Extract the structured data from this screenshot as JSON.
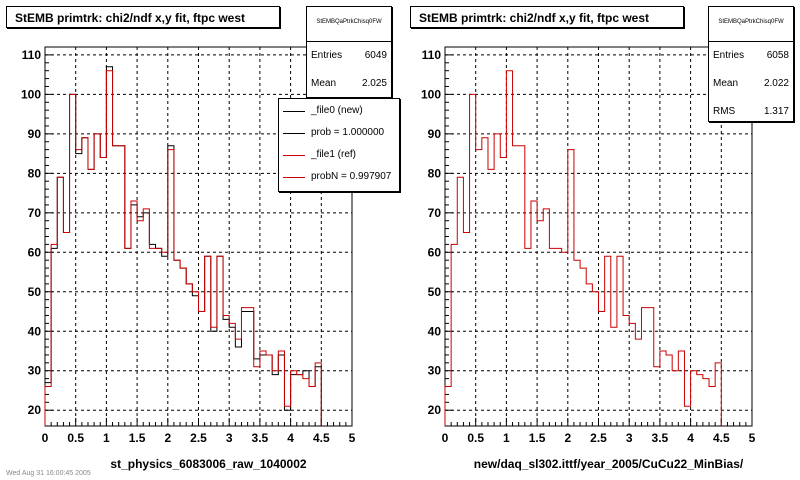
{
  "colors": {
    "ref": "#cc0000",
    "new": "#000000",
    "grid": "#000000"
  },
  "footer_note": "Wed Aug 31 16:00:45 2005",
  "chart_data": [
    {
      "type": "histogram",
      "title": "StEMB primtrk: chi2/ndf x,y fit, ftpc west",
      "xlabel": "st_physics_6083006_raw_1040002",
      "ylabel": "",
      "xlim": [
        0,
        5
      ],
      "ylim": [
        16,
        112
      ],
      "xticks": [
        "0",
        "0.5",
        "1",
        "1.5",
        "2",
        "2.5",
        "3",
        "3.5",
        "4",
        "4.5",
        "5"
      ],
      "yticks": [
        "20",
        "30",
        "40",
        "50",
        "60",
        "70",
        "80",
        "90",
        "100",
        "110"
      ],
      "grid": true,
      "bin_edges_start": 0,
      "bin_width": 0.1,
      "stats": {
        "name": "StEMBQaPtrkChisq0FW",
        "entries_label": "Entries",
        "entries": "6049",
        "mean_label": "Mean",
        "mean": "2.025"
      },
      "legend": {
        "placement": "top-right",
        "entries": [
          {
            "label": "_file0 (new)",
            "color": "#000000"
          },
          {
            "label": "prob = 1.000000",
            "color": "#000000"
          },
          {
            "label": "_file1 (ref)",
            "color": "#cc0000"
          },
          {
            "label": "probN = 0.997907",
            "color": "#cc0000"
          }
        ]
      },
      "series": [
        {
          "name": "_file0 (new)",
          "color": "#000000",
          "values": [
            27,
            61,
            79,
            65,
            100,
            85,
            89,
            81,
            90,
            84,
            107,
            87,
            87,
            61,
            72,
            69,
            70,
            62,
            61,
            59,
            87,
            58,
            56,
            52,
            49,
            45,
            59,
            40,
            59,
            43,
            41,
            36,
            45,
            45,
            33,
            34,
            34,
            29,
            34,
            20,
            29,
            29,
            30,
            26,
            31
          ]
        },
        {
          "name": "_file1 (ref)",
          "color": "#cc0000",
          "values": [
            26,
            62,
            79,
            65,
            100,
            86,
            89,
            81,
            90,
            84,
            106,
            87,
            87,
            61,
            73,
            68,
            71,
            61,
            61,
            60,
            86,
            58,
            56,
            52,
            50,
            45,
            59,
            41,
            59,
            44,
            42,
            38,
            46,
            46,
            31,
            35,
            34,
            30,
            35,
            21,
            30,
            29,
            28,
            26,
            32
          ]
        }
      ]
    },
    {
      "type": "histogram",
      "title": "StEMB primtrk: chi2/ndf x,y fit, ftpc west",
      "xlabel": "new/daq_sl302.ittf/year_2005/CuCu22_MinBias/",
      "ylabel": "",
      "xlim": [
        0,
        5
      ],
      "ylim": [
        16,
        112
      ],
      "xticks": [
        "0",
        "0.5",
        "1",
        "1.5",
        "2",
        "2.5",
        "3",
        "3.5",
        "4",
        "4.5",
        "5"
      ],
      "yticks": [
        "20",
        "30",
        "40",
        "50",
        "60",
        "70",
        "80",
        "90",
        "100",
        "110"
      ],
      "grid": true,
      "bin_edges_start": 0,
      "bin_width": 0.1,
      "stats": {
        "name": "StEMBQaPtrkChisq0FW",
        "entries_label": "Entries",
        "entries": "6058",
        "mean_label": "Mean",
        "mean": "2.022",
        "rms_label": "RMS",
        "rms": "1.317"
      },
      "series": [
        {
          "name": "_file1 (ref)",
          "color": "#cc0000",
          "values": [
            26,
            62,
            79,
            65,
            100,
            86,
            89,
            81,
            90,
            84,
            106,
            87,
            87,
            61,
            73,
            68,
            71,
            61,
            61,
            60,
            86,
            58,
            56,
            52,
            50,
            45,
            59,
            41,
            59,
            44,
            42,
            38,
            46,
            46,
            31,
            35,
            34,
            30,
            35,
            21,
            30,
            29,
            28,
            26,
            32
          ]
        }
      ]
    }
  ]
}
